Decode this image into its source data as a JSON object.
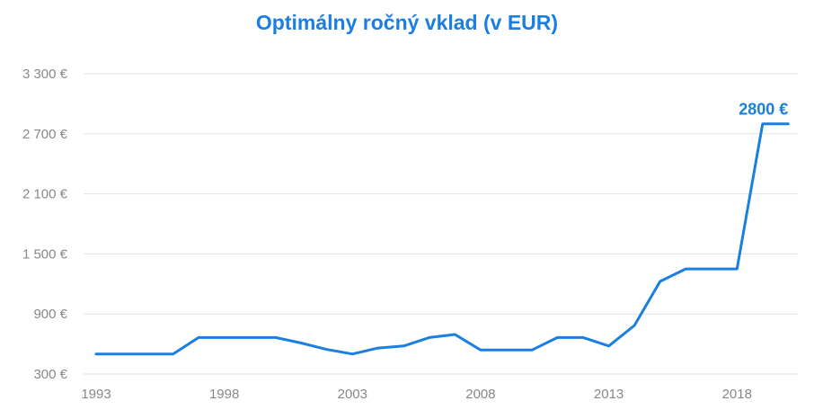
{
  "chart_data": {
    "type": "line",
    "title": "Optimálny ročný vklad (v EUR)",
    "xlabel": "",
    "ylabel": "",
    "x": [
      1993,
      1994,
      1995,
      1996,
      1997,
      1998,
      1999,
      2000,
      2001,
      2002,
      2003,
      2004,
      2005,
      2006,
      2007,
      2008,
      2009,
      2010,
      2011,
      2012,
      2013,
      2014,
      2015,
      2016,
      2017,
      2018,
      2019,
      2020
    ],
    "series": [
      {
        "values": [
          500,
          500,
          500,
          500,
          665,
          665,
          665,
          665,
          610,
          545,
          500,
          560,
          580,
          665,
          695,
          540,
          540,
          540,
          665,
          665,
          580,
          785,
          1225,
          1350,
          1350,
          1350,
          2800,
          2800
        ]
      }
    ],
    "ylim": [
      300,
      3300
    ],
    "xlim": [
      1993,
      2020
    ],
    "y_ticks": [
      300,
      900,
      1500,
      2100,
      2700,
      3300
    ],
    "y_tick_labels": [
      "300 €",
      "900 €",
      "1 500 €",
      "2 100 €",
      "2 700 €",
      "3 300 €"
    ],
    "x_ticks": [
      1993,
      1998,
      2003,
      2008,
      2013,
      2018
    ],
    "x_tick_labels": [
      "1993",
      "1998",
      "2003",
      "2008",
      "2013",
      "2018"
    ],
    "annotation": {
      "x": 2020,
      "y": 2800,
      "text": "2800 €"
    },
    "line_color": "#1a7fe0",
    "grid": true,
    "legend": "none"
  }
}
